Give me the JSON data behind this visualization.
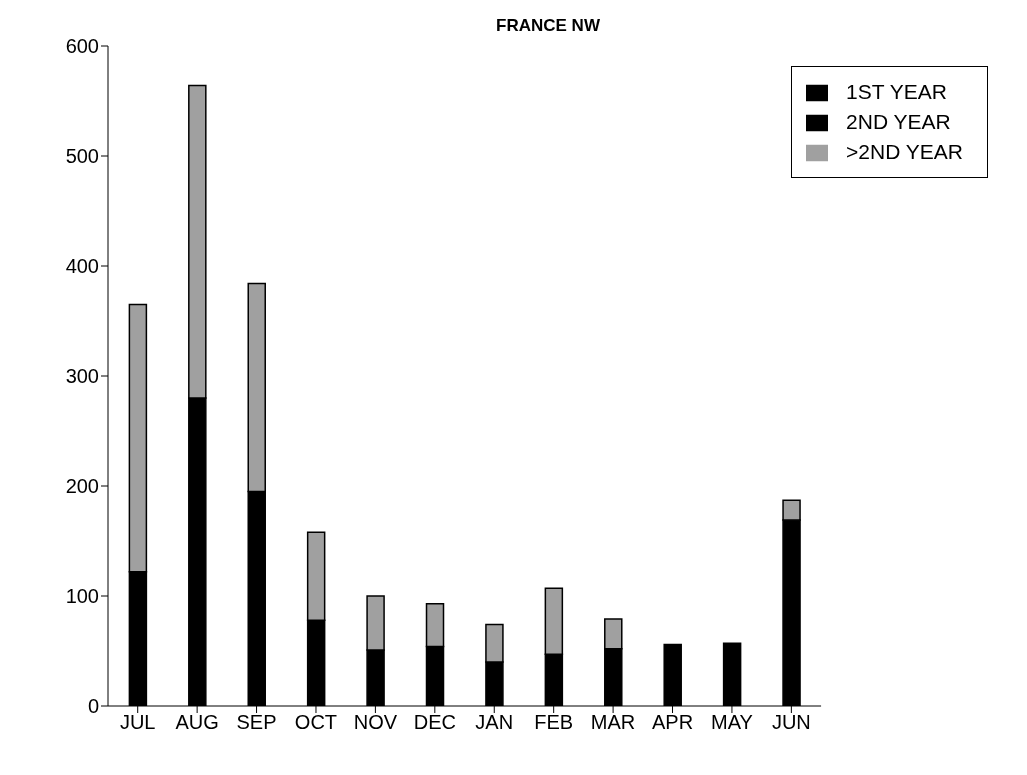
{
  "chart_data": {
    "type": "bar",
    "title": "FRANCE NW",
    "stacked": true,
    "categories": [
      "JUL",
      "AUG",
      "SEP",
      "OCT",
      "NOV",
      "DEC",
      "JAN",
      "FEB",
      "MAR",
      "APR",
      "MAY",
      "JUN"
    ],
    "series": [
      {
        "name": "1ST YEAR",
        "color": "#000000",
        "values": [
          122,
          280,
          195,
          78,
          51,
          54,
          40,
          47,
          52,
          56,
          57,
          169
        ]
      },
      {
        "name": "2ND YEAR",
        "color": "#000000",
        "values": [
          null,
          null,
          null,
          null,
          null,
          null,
          null,
          null,
          null,
          null,
          null,
          null
        ]
      },
      {
        "name": ">2ND YEAR",
        "color": "#a0a0a0",
        "values": [
          243,
          284,
          189,
          80,
          49,
          39,
          34,
          60,
          27,
          0,
          0,
          18
        ]
      }
    ],
    "ylim": [
      0,
      600
    ],
    "yticks": [
      0,
      100,
      200,
      300,
      400,
      500,
      600
    ],
    "grid": false,
    "legend": "top right"
  }
}
